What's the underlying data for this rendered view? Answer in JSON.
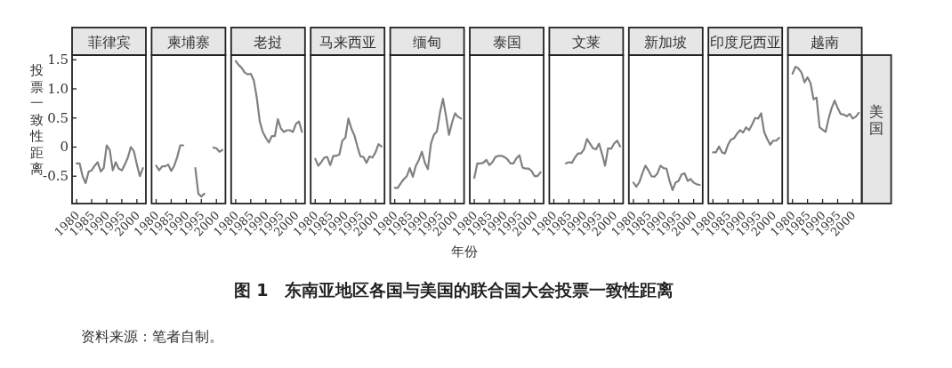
{
  "chart_data": [
    {
      "type": "line",
      "title": "菲律宾",
      "ylabel": "投票一致性距离",
      "x": [
        1980,
        1981,
        1982,
        1983,
        1984,
        1985,
        1986,
        1987,
        1988,
        1989,
        1990,
        1991,
        1992,
        1993,
        1994,
        1995,
        1996,
        1997,
        1998,
        1999,
        2000,
        2001,
        2002
      ],
      "xlim": [
        1978.5,
        2003
      ],
      "xticks": [
        1980,
        1985,
        1990,
        1995,
        2000
      ],
      "ylim": [
        -0.97,
        1.58
      ],
      "yticks": [
        {
          "value": 1.5,
          "label": "1.5"
        },
        {
          "value": 1,
          "label": "1.0"
        },
        {
          "value": 0.5,
          "label": "0.5"
        },
        0,
        -0.5
      ],
      "series": [
        {
          "color": "#808080",
          "values": [
            -0.28,
            -0.28,
            -0.5,
            -0.62,
            -0.42,
            -0.4,
            -0.32,
            -0.26,
            -0.42,
            -0.36,
            0.03,
            -0.05,
            -0.4,
            -0.26,
            -0.37,
            -0.4,
            -0.3,
            -0.18,
            0,
            -0.07,
            -0.3,
            -0.5,
            -0.36
          ]
        }
      ]
    },
    {
      "type": "line",
      "title": "柬埔寨",
      "tick_labels": "x",
      "xlim": [
        1978.5,
        2003
      ],
      "xticks": [
        1980,
        1985,
        1990,
        1995,
        2000
      ],
      "ylim": [
        -0.97,
        1.58
      ],
      "series": [
        {
          "color": "#808080",
          "x": [
            1980,
            1981,
            1982,
            1983,
            1984,
            1985,
            1986,
            1987,
            1988,
            1989,
            1990,
            1991,
            1992,
            1993,
            1994,
            1995,
            1996
          ],
          "values": [
            -0.32,
            -0.4,
            -0.33,
            -0.33,
            -0.3,
            -0.41,
            -0.32,
            -0.17,
            0.03,
            0.03,
            null,
            null,
            null,
            -0.36,
            -0.8,
            -0.85,
            -0.8
          ]
        },
        {
          "color": "#808080",
          "x": [
            1999,
            2000,
            2001,
            2002
          ],
          "values": [
            -0.01,
            -0.02,
            -0.08,
            -0.05
          ]
        }
      ]
    },
    {
      "type": "line",
      "title": "老挝",
      "tick_labels": "x",
      "x": [
        1980,
        1981,
        1982,
        1983,
        1984,
        1985,
        1986,
        1987,
        1988,
        1989,
        1990,
        1991,
        1992,
        1993,
        1994,
        1995,
        1996,
        1997,
        1998,
        1999,
        2000,
        2001,
        2002
      ],
      "xlim": [
        1978.5,
        2003
      ],
      "xticks": [
        1980,
        1985,
        1990,
        1995,
        2000
      ],
      "ylim": [
        -0.97,
        1.58
      ],
      "series": [
        {
          "color": "#808080",
          "values": [
            1.48,
            1.41,
            1.36,
            1.28,
            1.25,
            1.26,
            1.15,
            0.85,
            0.44,
            0.26,
            0.16,
            0.08,
            0.19,
            0.19,
            0.48,
            0.32,
            0.26,
            0.29,
            0.29,
            0.26,
            0.4,
            0.44,
            0.26
          ]
        }
      ]
    },
    {
      "type": "line",
      "title": "马来西亚",
      "tick_labels": "x",
      "x": [
        1980,
        1981,
        1982,
        1983,
        1984,
        1985,
        1986,
        1987,
        1988,
        1989,
        1990,
        1991,
        1992,
        1993,
        1994,
        1995,
        1996,
        1997,
        1998,
        1999,
        2000,
        2001,
        2002
      ],
      "xlim": [
        1978.5,
        2003
      ],
      "xticks": [
        1980,
        1985,
        1990,
        1995,
        2000
      ],
      "ylim": [
        -0.97,
        1.58
      ],
      "series": [
        {
          "color": "#808080",
          "values": [
            -0.2,
            -0.32,
            -0.26,
            -0.18,
            -0.17,
            -0.31,
            -0.15,
            -0.15,
            -0.13,
            0.11,
            0.16,
            0.49,
            0.32,
            0.2,
            0.01,
            -0.16,
            -0.17,
            -0.27,
            -0.16,
            -0.18,
            -0.09,
            0.05,
            0.01
          ]
        }
      ]
    },
    {
      "type": "line",
      "title": "缅甸",
      "xlabel": "年份",
      "tick_labels": "x",
      "x": [
        1980,
        1981,
        1982,
        1983,
        1984,
        1985,
        1986,
        1987,
        1988,
        1989,
        1990,
        1991,
        1992,
        1993,
        1994,
        1995,
        1996,
        1997,
        1998,
        1999,
        2000,
        2001,
        2002
      ],
      "xlim": [
        1978.5,
        2003
      ],
      "xticks": [
        1980,
        1985,
        1990,
        1995,
        2000
      ],
      "ylim": [
        -0.97,
        1.58
      ],
      "series": [
        {
          "color": "#808080",
          "values": [
            -0.7,
            -0.7,
            -0.62,
            -0.55,
            -0.5,
            -0.36,
            -0.51,
            -0.32,
            -0.22,
            -0.08,
            -0.27,
            -0.38,
            0.06,
            0.21,
            0.27,
            0.59,
            0.83,
            0.54,
            0.21,
            0.42,
            0.58,
            0.52,
            0.49
          ]
        }
      ]
    },
    {
      "type": "line",
      "title": "泰国",
      "tick_labels": "x",
      "x": [
        1980,
        1981,
        1982,
        1983,
        1984,
        1985,
        1986,
        1987,
        1988,
        1989,
        1990,
        1991,
        1992,
        1993,
        1994,
        1995,
        1996,
        1997,
        1998,
        1999,
        2000,
        2001,
        2002
      ],
      "xlim": [
        1978.5,
        2003
      ],
      "xticks": [
        1980,
        1985,
        1990,
        1995,
        2000
      ],
      "ylim": [
        -0.97,
        1.58
      ],
      "series": [
        {
          "color": "#808080",
          "values": [
            -0.53,
            -0.28,
            -0.28,
            -0.27,
            -0.22,
            -0.31,
            -0.26,
            -0.17,
            -0.15,
            -0.15,
            -0.17,
            -0.21,
            -0.28,
            -0.28,
            -0.19,
            -0.14,
            -0.35,
            -0.37,
            -0.37,
            -0.41,
            -0.5,
            -0.5,
            -0.43
          ]
        }
      ]
    },
    {
      "type": "line",
      "title": "文莱",
      "tick_labels": "x",
      "x": [
        1984,
        1985,
        1986,
        1987,
        1988,
        1989,
        1990,
        1991,
        1992,
        1993,
        1994,
        1995,
        1996,
        1997,
        1998,
        1999,
        2000,
        2001,
        2002
      ],
      "xlim": [
        1978.5,
        2003
      ],
      "xticks": [
        1980,
        1985,
        1990,
        1995,
        2000
      ],
      "ylim": [
        -0.97,
        1.58
      ],
      "series": [
        {
          "color": "#808080",
          "values": [
            -0.28,
            -0.26,
            -0.27,
            -0.18,
            -0.11,
            -0.11,
            -0.04,
            0.14,
            0.06,
            -0.02,
            -0.04,
            0.06,
            -0.12,
            -0.32,
            -0.02,
            -0.03,
            0.06,
            0.11,
            0.01
          ]
        }
      ]
    },
    {
      "type": "line",
      "title": "新加坡",
      "tick_labels": "x",
      "x": [
        1980,
        1981,
        1982,
        1983,
        1984,
        1985,
        1986,
        1987,
        1988,
        1989,
        1990,
        1991,
        1992,
        1993,
        1994,
        1995,
        1996,
        1997,
        1998,
        1999,
        2000,
        2001,
        2002
      ],
      "xlim": [
        1978.5,
        2003
      ],
      "xticks": [
        1980,
        1985,
        1990,
        1995,
        2000
      ],
      "ylim": [
        -0.97,
        1.58
      ],
      "series": [
        {
          "color": "#808080",
          "values": [
            -0.61,
            -0.68,
            -0.6,
            -0.45,
            -0.32,
            -0.4,
            -0.5,
            -0.51,
            -0.45,
            -0.32,
            -0.36,
            -0.37,
            -0.58,
            -0.74,
            -0.61,
            -0.58,
            -0.47,
            -0.45,
            -0.58,
            -0.55,
            -0.61,
            -0.64,
            -0.65
          ]
        }
      ]
    },
    {
      "type": "line",
      "title": "印度尼西亚",
      "tick_labels": "x",
      "x": [
        1980,
        1981,
        1982,
        1983,
        1984,
        1985,
        1986,
        1987,
        1988,
        1989,
        1990,
        1991,
        1992,
        1993,
        1994,
        1995,
        1996,
        1997,
        1998,
        1999,
        2000,
        2001,
        2002
      ],
      "xlim": [
        1978.5,
        2003
      ],
      "xticks": [
        1980,
        1985,
        1990,
        1995,
        2000
      ],
      "ylim": [
        -0.97,
        1.58
      ],
      "series": [
        {
          "color": "#808080",
          "values": [
            -0.09,
            -0.09,
            0.01,
            -0.09,
            -0.11,
            0.04,
            0.13,
            0.15,
            0.23,
            0.29,
            0.25,
            0.34,
            0.29,
            0.39,
            0.5,
            0.49,
            0.58,
            0.26,
            0.14,
            0.04,
            0.11,
            0.11,
            0.16
          ]
        }
      ]
    },
    {
      "type": "line",
      "title": "越南",
      "y2label": "美国",
      "tick_labels": "x",
      "x": [
        1980,
        1981,
        1982,
        1983,
        1984,
        1985,
        1986,
        1987,
        1988,
        1989,
        1990,
        1991,
        1992,
        1993,
        1994,
        1995,
        1996,
        1997,
        1998,
        1999,
        2000,
        2001,
        2002
      ],
      "xlim": [
        1978.5,
        2003
      ],
      "xticks": [
        1980,
        1985,
        1990,
        1995,
        2000
      ],
      "ylim": [
        -0.97,
        1.58
      ],
      "series": [
        {
          "color": "#808080",
          "values": [
            1.26,
            1.38,
            1.35,
            1.28,
            1.11,
            1.2,
            1.1,
            0.82,
            0.85,
            0.34,
            0.3,
            0.26,
            0.49,
            0.67,
            0.8,
            0.67,
            0.57,
            0.56,
            0.53,
            0.57,
            0.49,
            0.52,
            0.59
          ]
        }
      ]
    },
    {
      "type": "other",
      "title": "图 1　东南亚地区各国与美国的联合国大会投票一致性距离",
      "annotations": [
        "资料来源：笔者自制。"
      ]
    }
  ]
}
